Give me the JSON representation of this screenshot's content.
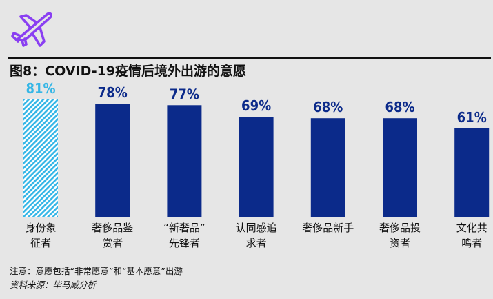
{
  "header": {
    "title": "图8：COVID-19疫情后境外出游的意愿",
    "icon": "airplane-icon",
    "icon_color": "#8a3ff2"
  },
  "chart_data": {
    "type": "bar",
    "categories": [
      [
        "身份象",
        "征者"
      ],
      [
        "奢侈品鉴",
        "赏者"
      ],
      [
        "“新奢品”",
        "先锋者"
      ],
      [
        "认同感追",
        "求者"
      ],
      [
        "奢侈品新手"
      ],
      [
        "奢侈品投",
        "资者"
      ],
      [
        "文化共",
        "鸣者"
      ]
    ],
    "values": [
      81,
      78,
      77,
      69,
      68,
      68,
      61
    ],
    "value_labels": [
      "81%",
      "78%",
      "77%",
      "69%",
      "68%",
      "68%",
      "61%"
    ],
    "unit": "%",
    "colors": {
      "primary": "#0b2a8a",
      "highlight": "#35b6e6",
      "highlight_pattern": "diagonal-hatch"
    },
    "highlight_index": 0,
    "ylim": [
      0,
      100
    ],
    "grid": false,
    "legend": "none"
  },
  "footer": {
    "note": "注意：意愿包括“非常愿意”和“基本愿意”出游",
    "source": "资料来源：毕马威分析"
  }
}
